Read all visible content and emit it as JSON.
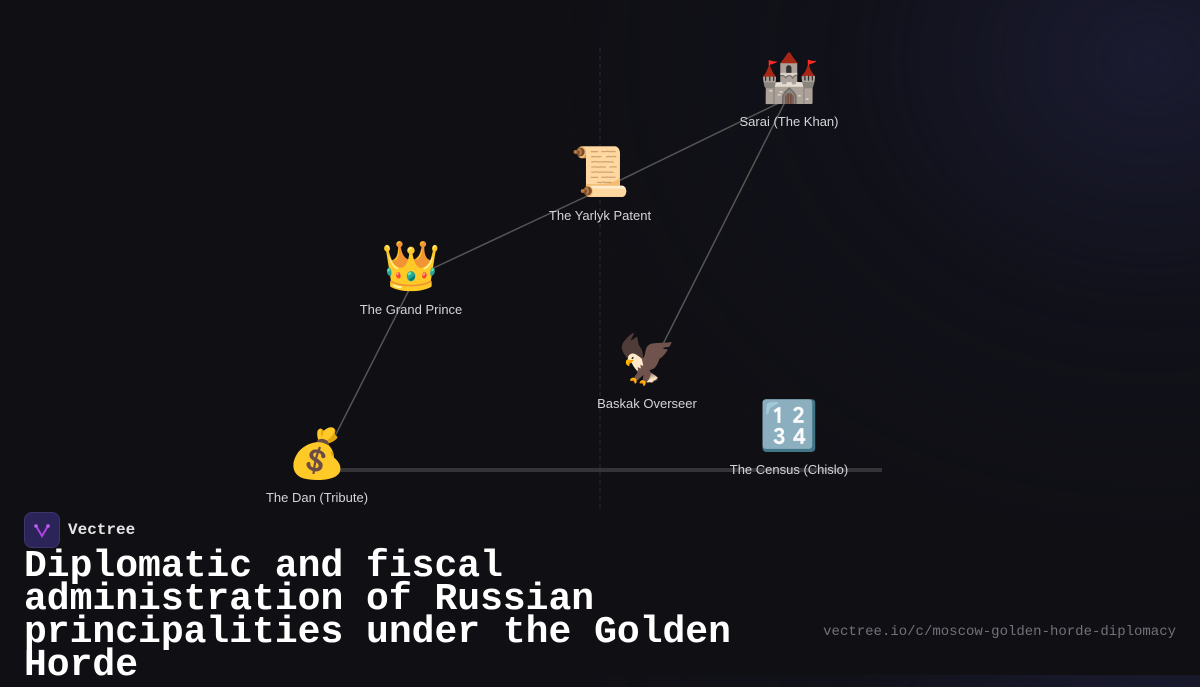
{
  "brand": {
    "name": "Vectree"
  },
  "title": "Diplomatic and fiscal administration of Russian principalities under the Golden Horde",
  "url": "vectree.io/c/moscow-golden-horde-diplomacy",
  "nodes": [
    {
      "id": "sarai",
      "icon": "castle-icon",
      "emoji": "🏰",
      "label": "Sarai (The Khan)"
    },
    {
      "id": "yarlyk",
      "icon": "scroll-icon",
      "emoji": "📜",
      "label": "The Yarlyk Patent"
    },
    {
      "id": "prince",
      "icon": "crown-icon",
      "emoji": "👑",
      "label": "The Grand Prince"
    },
    {
      "id": "baskak",
      "icon": "eagle-icon",
      "emoji": "🦅",
      "label": "Baskak Overseer"
    },
    {
      "id": "census",
      "icon": "numbers-icon",
      "emoji": "🔢",
      "label": "The Census (Chislo)"
    },
    {
      "id": "dan",
      "icon": "money-bag-icon",
      "emoji": "💰",
      "label": "The Dan (Tribute)"
    }
  ],
  "edges": [
    [
      "sarai",
      "yarlyk"
    ],
    [
      "yarlyk",
      "prince"
    ],
    [
      "prince",
      "dan"
    ],
    [
      "sarai",
      "baskak"
    ]
  ]
}
